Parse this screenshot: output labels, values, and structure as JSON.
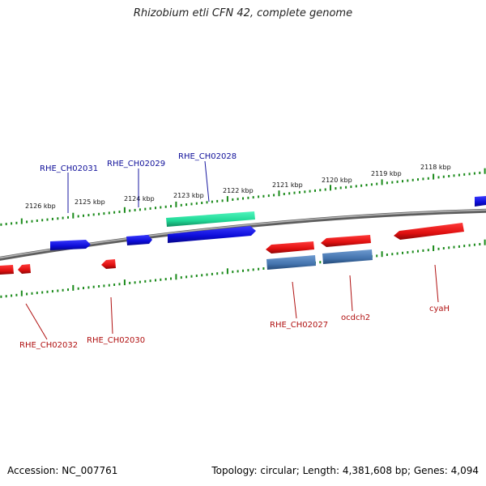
{
  "title": "Rhizobium etli CFN 42, complete genome",
  "footer": {
    "accession": "Accession: NC_007761",
    "summary": "Topology: circular; Length: 4,381,608 bp; Genes: 4,094"
  },
  "colors": {
    "forward_gene": "#1010e0",
    "reverse_gene": "#ee1111",
    "forward_feature": "#22e8a0",
    "reverse_feature": "#4878b4",
    "forward_label": "#10109a",
    "reverse_label": "#b01010",
    "scale_ticks": "#1a8a1a",
    "backbone": "#8a8a8a"
  },
  "scale_labels": [
    "2126 kbp",
    "2125 kbp",
    "2124 kbp",
    "2123 kbp",
    "2122 kbp",
    "2121 kbp",
    "2120 kbp",
    "2119 kbp",
    "2118 kbp"
  ],
  "gene_labels": {
    "rhe_ch02031": "RHE_CH02031",
    "rhe_ch02029": "RHE_CH02029",
    "rhe_ch02028": "RHE_CH02028",
    "rhe_ch02032": "RHE_CH02032",
    "rhe_ch02030": "RHE_CH02030",
    "rhe_ch02027": "RHE_CH02027",
    "ocdch2": "ocdch2",
    "cyah": "cyaH"
  }
}
